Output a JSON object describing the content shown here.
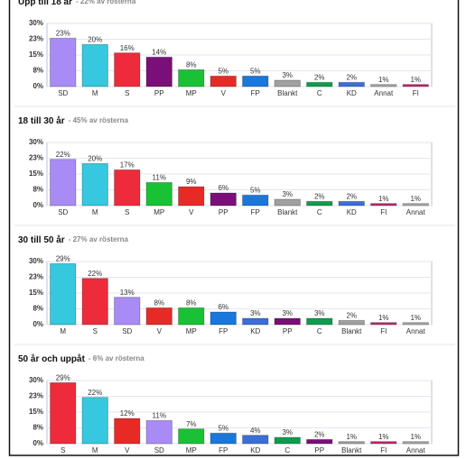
{
  "chart_data": [
    {
      "type": "bar",
      "title": "Upp till 18 år",
      "subtitle": "- 22% av rösterna",
      "categories": [
        "SD",
        "M",
        "S",
        "PP",
        "MP",
        "V",
        "FP",
        "Blankt",
        "C",
        "KD",
        "Annat",
        "FI"
      ],
      "values": [
        23,
        20,
        16,
        14,
        8,
        5,
        5,
        3,
        2,
        2,
        1,
        1
      ],
      "value_labels": [
        "23%",
        "20%",
        "16%",
        "14%",
        "8%",
        "5%",
        "5%",
        "3%",
        "2%",
        "2%",
        "1%",
        "1%"
      ],
      "colors": [
        "#a98bf5",
        "#35c8de",
        "#ee2b3a",
        "#7a0f7a",
        "#18c234",
        "#e82a27",
        "#1a77db",
        "#a0a0a0",
        "#0f9c4c",
        "#3a6fd8",
        "#a8a8a8",
        "#c4266d"
      ],
      "ylim": [
        0,
        30
      ],
      "yticks": [
        {
          "value": 0,
          "label": "0%"
        },
        {
          "value": 7.5,
          "label": "8%"
        },
        {
          "value": 15,
          "label": "15%"
        },
        {
          "value": 22.5,
          "label": "23%"
        },
        {
          "value": 30,
          "label": "30%"
        }
      ],
      "grid": true
    },
    {
      "type": "bar",
      "title": "18 till 30 år",
      "subtitle": "- 45% av rösterna",
      "categories": [
        "SD",
        "M",
        "S",
        "MP",
        "V",
        "PP",
        "FP",
        "Blankt",
        "C",
        "KD",
        "FI",
        "Annat"
      ],
      "values": [
        22,
        20,
        17,
        11,
        9,
        6,
        5,
        3,
        2,
        2,
        1,
        1
      ],
      "value_labels": [
        "22%",
        "20%",
        "17%",
        "11%",
        "9%",
        "6%",
        "5%",
        "3%",
        "2%",
        "2%",
        "1%",
        "1%"
      ],
      "colors": [
        "#a98bf5",
        "#35c8de",
        "#ee2b3a",
        "#18c234",
        "#e82a27",
        "#7a0f7a",
        "#1a77db",
        "#a0a0a0",
        "#0f9c4c",
        "#3a6fd8",
        "#c4266d",
        "#a8a8a8"
      ],
      "ylim": [
        0,
        30
      ],
      "yticks": [
        {
          "value": 0,
          "label": "0%"
        },
        {
          "value": 7.5,
          "label": "8%"
        },
        {
          "value": 15,
          "label": "15%"
        },
        {
          "value": 22.5,
          "label": "23%"
        },
        {
          "value": 30,
          "label": "30%"
        }
      ],
      "grid": true
    },
    {
      "type": "bar",
      "title": "30 till 50 år",
      "subtitle": "- 27% av rösterna",
      "categories": [
        "M",
        "S",
        "SD",
        "V",
        "MP",
        "FP",
        "KD",
        "PP",
        "C",
        "Blankt",
        "FI",
        "Annat"
      ],
      "values": [
        29,
        22,
        13,
        8,
        8,
        6,
        3,
        3,
        3,
        2,
        1,
        1
      ],
      "value_labels": [
        "29%",
        "22%",
        "13%",
        "8%",
        "8%",
        "6%",
        "3%",
        "3%",
        "3%",
        "2%",
        "1%",
        "1%"
      ],
      "colors": [
        "#35c8de",
        "#ee2b3a",
        "#a98bf5",
        "#e82a27",
        "#18c234",
        "#1a77db",
        "#3a6fd8",
        "#7a0f7a",
        "#0f9c4c",
        "#a0a0a0",
        "#c4266d",
        "#a8a8a8"
      ],
      "ylim": [
        0,
        30
      ],
      "yticks": [
        {
          "value": 0,
          "label": "0%"
        },
        {
          "value": 7.5,
          "label": "8%"
        },
        {
          "value": 15,
          "label": "15%"
        },
        {
          "value": 22.5,
          "label": "23%"
        },
        {
          "value": 30,
          "label": "30%"
        }
      ],
      "grid": true
    },
    {
      "type": "bar",
      "title": "50 år och uppåt",
      "subtitle": "- 6% av rösterna",
      "categories": [
        "S",
        "M",
        "V",
        "SD",
        "MP",
        "FP",
        "KD",
        "C",
        "PP",
        "Blankt",
        "FI",
        "Annat"
      ],
      "values": [
        29,
        22,
        12,
        11,
        7,
        5,
        4,
        3,
        2,
        1,
        1,
        1
      ],
      "value_labels": [
        "29%",
        "22%",
        "12%",
        "11%",
        "7%",
        "5%",
        "4%",
        "3%",
        "2%",
        "1%",
        "1%",
        "1%"
      ],
      "colors": [
        "#ee2b3a",
        "#35c8de",
        "#e82a27",
        "#a98bf5",
        "#18c234",
        "#1a77db",
        "#3a6fd8",
        "#0f9c4c",
        "#7a0f7a",
        "#a0a0a0",
        "#c4266d",
        "#a8a8a8"
      ],
      "ylim": [
        0,
        30
      ],
      "yticks": [
        {
          "value": 0,
          "label": "0%"
        },
        {
          "value": 7.5,
          "label": "8%"
        },
        {
          "value": 15,
          "label": "15%"
        },
        {
          "value": 22.5,
          "label": "23%"
        },
        {
          "value": 30,
          "label": "30%"
        }
      ],
      "grid": true
    }
  ]
}
